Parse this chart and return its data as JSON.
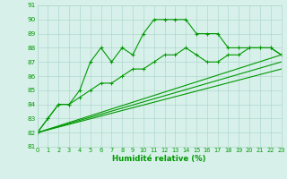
{
  "xlabel": "Humidité relative (%)",
  "xlim": [
    0,
    23
  ],
  "ylim": [
    81,
    91
  ],
  "yticks": [
    81,
    82,
    83,
    84,
    85,
    86,
    87,
    88,
    89,
    90,
    91
  ],
  "xticks": [
    0,
    1,
    2,
    3,
    4,
    5,
    6,
    7,
    8,
    9,
    10,
    11,
    12,
    13,
    14,
    15,
    16,
    17,
    18,
    19,
    20,
    21,
    22,
    23
  ],
  "bg_color": "#d7f0ea",
  "grid_color": "#b0d8ce",
  "line_color": "#009900",
  "line1_x": [
    0,
    1,
    2,
    3,
    4,
    5,
    6,
    7,
    8,
    9,
    10,
    11,
    12,
    13,
    14,
    15,
    16,
    17,
    18,
    19,
    20,
    21,
    22,
    23
  ],
  "line1_y": [
    82,
    83,
    84,
    84,
    85,
    87,
    88,
    87,
    88,
    87.5,
    89,
    90,
    90,
    90,
    90,
    89,
    89,
    89,
    88,
    88,
    88,
    88,
    88,
    87.5
  ],
  "line2_x": [
    0,
    1,
    2,
    3,
    4,
    5,
    6,
    7,
    8,
    9,
    10,
    11,
    12,
    13,
    14,
    15,
    16,
    17,
    18,
    19,
    20,
    21,
    22,
    23
  ],
  "line2_y": [
    82,
    83,
    84,
    84,
    84.5,
    85,
    85.5,
    85.5,
    86,
    86.5,
    86.5,
    87,
    87.5,
    87.5,
    88,
    87.5,
    87,
    87,
    87.5,
    87.5,
    88,
    88,
    88,
    87.5
  ],
  "line3_x": [
    0,
    23
  ],
  "line3_y": [
    82,
    87.5
  ],
  "line4_x": [
    0,
    23
  ],
  "line4_y": [
    82,
    87.0
  ],
  "line5_x": [
    0,
    23
  ],
  "line5_y": [
    82,
    86.5
  ]
}
